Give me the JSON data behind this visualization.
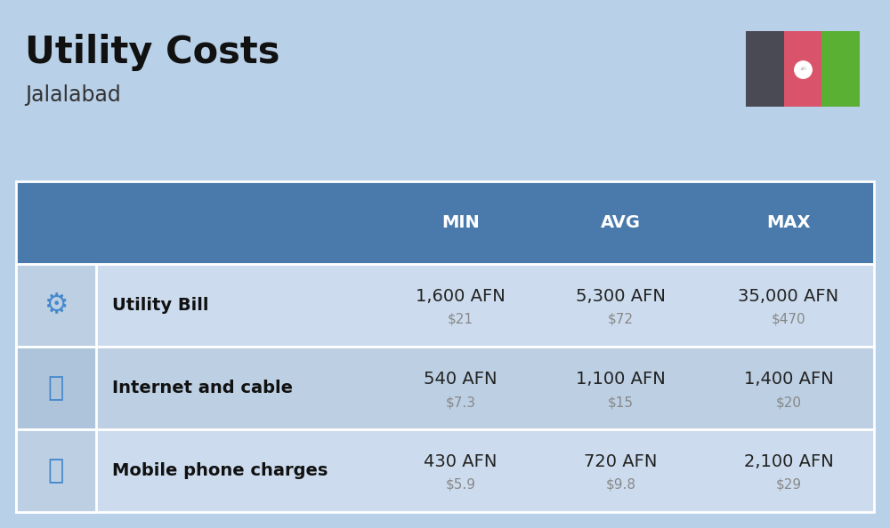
{
  "title": "Utility Costs",
  "subtitle": "Jalalabad",
  "background_color": "#b8d0e8",
  "header_bg_color": "#4a7aab",
  "header_text_color": "#ffffff",
  "row_bg_color_1": "#ccdcee",
  "row_bg_color_2": "#bccfe3",
  "icon_col_bg_1": "#bccfe3",
  "icon_col_bg_2": "#aec4db",
  "table_border_color": "#ffffff",
  "col_headers": [
    "MIN",
    "AVG",
    "MAX"
  ],
  "rows": [
    {
      "label": "Utility Bill",
      "min_afn": "1,600 AFN",
      "min_usd": "$21",
      "avg_afn": "5,300 AFN",
      "avg_usd": "$72",
      "max_afn": "35,000 AFN",
      "max_usd": "$470"
    },
    {
      "label": "Internet and cable",
      "min_afn": "540 AFN",
      "min_usd": "$7.3",
      "avg_afn": "1,100 AFN",
      "avg_usd": "$15",
      "max_afn": "1,400 AFN",
      "max_usd": "$20"
    },
    {
      "label": "Mobile phone charges",
      "min_afn": "430 AFN",
      "min_usd": "$5.9",
      "avg_afn": "720 AFN",
      "avg_usd": "$9.8",
      "max_afn": "2,100 AFN",
      "max_usd": "$29"
    }
  ],
  "flag_black": "#4a4a55",
  "flag_red": "#d9536a",
  "flag_green": "#5ab033",
  "afn_fontsize": 14,
  "usd_fontsize": 11,
  "label_fontsize": 14,
  "header_fontsize": 14,
  "title_fontsize": 30,
  "subtitle_fontsize": 17
}
